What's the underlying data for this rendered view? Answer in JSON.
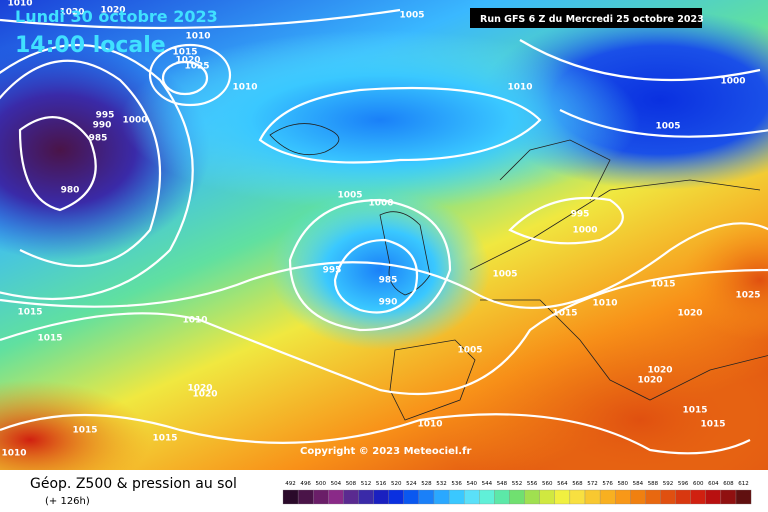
{
  "header": {
    "date": "Lundi 30 octobre 2023",
    "time": "14:00 locale",
    "run": "Run GFS 6 Z du Mercredi 25 octobre 2023"
  },
  "pressure_labels": [
    "1010",
    "1020",
    "1020",
    "1005",
    "1010",
    "1015",
    "1020",
    "1025",
    "1010",
    "1010",
    "1000",
    "995",
    "990",
    "1000",
    "985",
    "1005",
    "980",
    "1005",
    "1000",
    "995",
    "1000",
    "995",
    "985",
    "990",
    "1005",
    "1015",
    "1010",
    "1025",
    "1015",
    "1015",
    "1020",
    "1010",
    "1015",
    "1005",
    "1020",
    "1020",
    "1020",
    "1020",
    "1015",
    "1015",
    "1010",
    "1015",
    "1015",
    "1010"
  ],
  "copyright": "Copyright © 2023 Meteociel.fr",
  "footer": {
    "title": "Géop. Z500 & pression au sol",
    "lead": "(+ 126h)"
  },
  "z500_scale": {
    "values": [
      492,
      496,
      500,
      504,
      508,
      512,
      516,
      520,
      524,
      528,
      532,
      536,
      540,
      544,
      548,
      552,
      556,
      560,
      564,
      568,
      572,
      576,
      580,
      584,
      588,
      592,
      596,
      600,
      604,
      608,
      612
    ],
    "colors": [
      "#2a0a2a",
      "#4a1448",
      "#6a1e68",
      "#8a2a88",
      "#5a2a90",
      "#3a2aa8",
      "#1a20c0",
      "#0a30e0",
      "#0a58f0",
      "#1a80f8",
      "#2aa8ff",
      "#3ac8ff",
      "#5ae0f8",
      "#60f0d8",
      "#5ce8a8",
      "#70e070",
      "#a0e050",
      "#d0e840",
      "#f0f040",
      "#f8e040",
      "#f8c830",
      "#f8b020",
      "#f89818",
      "#f08010",
      "#e86810",
      "#e05010",
      "#d83810",
      "#d02010",
      "#b81010",
      "#901010",
      "#601010"
    ]
  }
}
